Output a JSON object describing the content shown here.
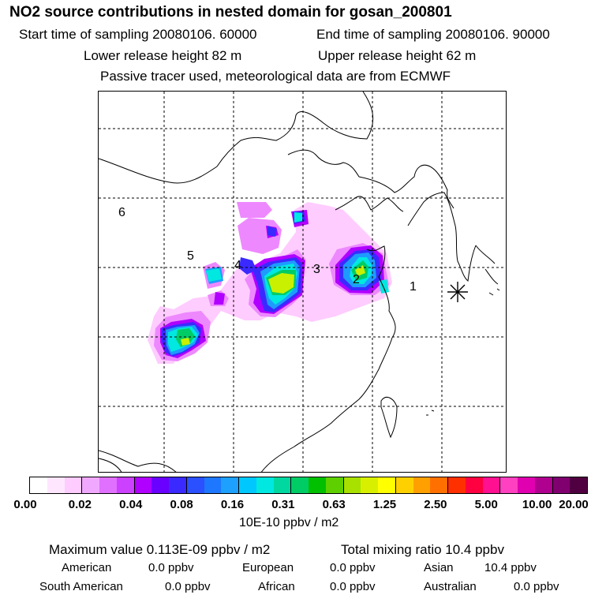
{
  "header": {
    "title": "NO2 source contributions in nested domain for gosan_200801",
    "start_time": "Start time of sampling 20080106. 60000",
    "end_time": "End time of sampling 20080106. 90000",
    "lower_height": "Lower release height   82 m",
    "upper_height": "Upper release height   62 m",
    "tracer_note": "Passive tracer used, meteorological data are from ECMWF"
  },
  "map": {
    "region_labels": [
      "1",
      "2",
      "3",
      "4",
      "5",
      "6"
    ],
    "receptor_marker": "asterisk-icon",
    "plume_colors": [
      "#ffccff",
      "#ee88ff",
      "#b000ff",
      "#3a2aff",
      "#1e9bff",
      "#00e8e0",
      "#00cc66",
      "#c8f000"
    ]
  },
  "colorbar": {
    "colors": [
      "#ffffff",
      "#ffe6ff",
      "#ffccff",
      "#f0a8ff",
      "#e070ff",
      "#cc40ff",
      "#b000ff",
      "#6a00ff",
      "#3a2aff",
      "#2a50ff",
      "#1e78ff",
      "#1ea0ff",
      "#00c8ff",
      "#00e8e0",
      "#00d8a0",
      "#00cc66",
      "#00c000",
      "#5ed000",
      "#a8e000",
      "#d8f000",
      "#ffff00",
      "#ffd000",
      "#ffa000",
      "#ff7000",
      "#ff3000",
      "#ff0040",
      "#ff1090",
      "#ff40c0",
      "#e000b0",
      "#b00090",
      "#800070",
      "#500040"
    ],
    "ticks": [
      "0.00",
      "0.02",
      "0.04",
      "0.08",
      "0.16",
      "0.31",
      "0.63",
      "1.25",
      "2.50",
      "5.00",
      "10.00",
      "20.00"
    ],
    "unit_label": "10E-10 ppbv / m2"
  },
  "footer": {
    "max_value": "Maximum value  0.113E-09 ppbv / m2",
    "total_mixing": "Total mixing ratio       10.4 ppbv",
    "contributions": [
      {
        "region": "American",
        "value": "0.0 ppbv"
      },
      {
        "region": "European",
        "value": "0.0 ppbv"
      },
      {
        "region": "Asian",
        "value": "10.4 ppbv"
      },
      {
        "region": "South American",
        "value": "0.0 ppbv"
      },
      {
        "region": "African",
        "value": "0.0 ppbv"
      },
      {
        "region": "Australian",
        "value": "0.0 ppbv"
      }
    ]
  }
}
